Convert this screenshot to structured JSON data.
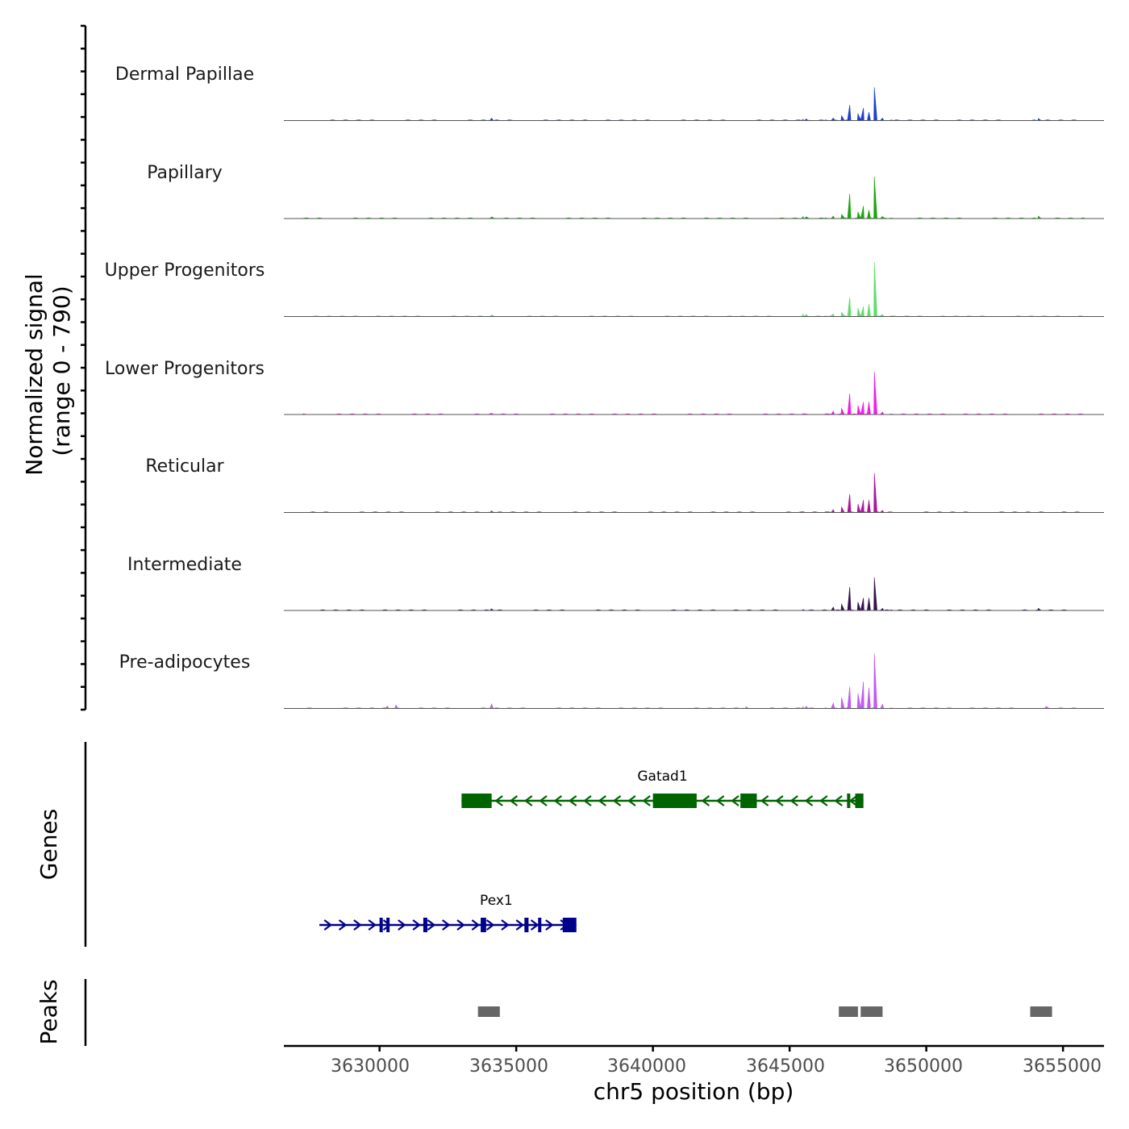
{
  "chart_data": {
    "type": "area",
    "title": "",
    "xlabel": "chr5 position (bp)",
    "ylabel_line1": "Normalized signal",
    "ylabel_line2": "(range 0 - 790)",
    "xlim": [
      3626500,
      3656500
    ],
    "ylim": [
      0,
      790
    ],
    "x_ticks": [
      3630000,
      3635000,
      3640000,
      3645000,
      3650000,
      3655000
    ],
    "x_tick_labels": [
      "3630000",
      "3635000",
      "3640000",
      "3645000",
      "3650000",
      "3655000"
    ],
    "peak_profile_x": [
      3645500,
      3646300,
      3646600,
      3646900,
      3647200,
      3647500,
      3647700,
      3647900,
      3648100,
      3648400,
      3648700
    ],
    "tracks": [
      {
        "name": "Dermal Papillae",
        "color": "#1a3fd6",
        "peak_profile": [
          30,
          15,
          60,
          120,
          370,
          160,
          300,
          200,
          790,
          60,
          15
        ],
        "small_peaks": [
          {
            "x": 3634100,
            "y": 60
          },
          {
            "x": 3645600,
            "y": 40
          },
          {
            "x": 3654100,
            "y": 50
          }
        ]
      },
      {
        "name": "Papillary",
        "color": "#17a80c",
        "peak_profile": [
          50,
          15,
          60,
          100,
          590,
          160,
          300,
          200,
          1000,
          50,
          15
        ],
        "small_peaks": [
          {
            "x": 3634100,
            "y": 40
          },
          {
            "x": 3645600,
            "y": 40
          },
          {
            "x": 3654100,
            "y": 60
          }
        ]
      },
      {
        "name": "Upper Progenitors",
        "color": "#5fdd6c",
        "peak_profile": [
          60,
          15,
          60,
          100,
          460,
          200,
          240,
          300,
          1300,
          50,
          15
        ],
        "small_peaks": [
          {
            "x": 3634100,
            "y": 40
          },
          {
            "x": 3645600,
            "y": 50
          }
        ]
      },
      {
        "name": "Lower Progenitors",
        "color": "#f51be8",
        "peak_profile": [
          20,
          15,
          80,
          150,
          500,
          220,
          300,
          300,
          1020,
          60,
          15
        ],
        "small_peaks": [
          {
            "x": 3634100,
            "y": 30
          }
        ]
      },
      {
        "name": "Reticular",
        "color": "#b0149e",
        "peak_profile": [
          20,
          15,
          70,
          130,
          440,
          200,
          300,
          300,
          940,
          50,
          15
        ],
        "small_peaks": [
          {
            "x": 3634100,
            "y": 40
          }
        ]
      },
      {
        "name": "Intermediate",
        "color": "#35114f",
        "peak_profile": [
          20,
          15,
          80,
          150,
          560,
          200,
          300,
          300,
          790,
          50,
          15
        ],
        "small_peaks": [
          {
            "x": 3634100,
            "y": 40
          },
          {
            "x": 3654100,
            "y": 50
          }
        ]
      },
      {
        "name": "Pre-adipocytes",
        "color": "#c25af5",
        "peak_profile": [
          40,
          15,
          130,
          260,
          520,
          360,
          640,
          500,
          1310,
          100,
          15
        ],
        "small_peaks": [
          {
            "x": 3630300,
            "y": 60
          },
          {
            "x": 3630600,
            "y": 80
          },
          {
            "x": 3634100,
            "y": 110
          },
          {
            "x": 3643400,
            "y": 40
          },
          {
            "x": 3645600,
            "y": 50
          },
          {
            "x": 3654400,
            "y": 50
          }
        ]
      }
    ],
    "genes_title": "Genes",
    "genes": [
      {
        "name": "Gatad1",
        "strand": "-",
        "color": "#006400",
        "start": 3633000,
        "end": 3647700,
        "exons": [
          [
            3633000,
            3634100
          ],
          [
            3640000,
            3641600
          ],
          [
            3643200,
            3643800
          ],
          [
            3647100,
            3647200
          ],
          [
            3647400,
            3647700
          ]
        ]
      },
      {
        "name": "Pex1",
        "strand": "+",
        "color": "#00008b",
        "start": 3627800,
        "end": 3637200,
        "exons": [
          [
            3630000,
            3630100
          ],
          [
            3630250,
            3630350
          ],
          [
            3631600,
            3631750
          ],
          [
            3633700,
            3633900
          ],
          [
            3635300,
            3635450
          ],
          [
            3635800,
            3635900
          ],
          [
            3636700,
            3637200
          ]
        ]
      }
    ],
    "peaks_title": "Peaks",
    "peaks": [
      [
        3633600,
        3634400
      ],
      [
        3646800,
        3647500
      ],
      [
        3647600,
        3648400
      ],
      [
        3653800,
        3654600
      ]
    ]
  }
}
